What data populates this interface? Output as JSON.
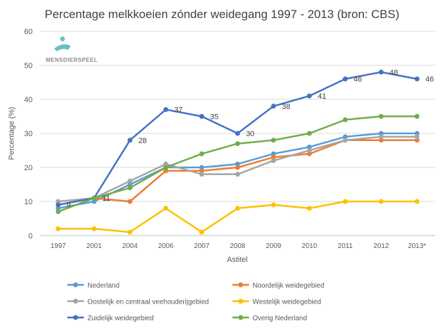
{
  "logo_text": "MENSDIERSPEEL",
  "chart_data": {
    "type": "line",
    "title": "Percentage melkkoeien zónder weidegang 1997 - 2013 (bron: CBS)",
    "xlabel": "Astitel",
    "ylabel": "Percentage (%)",
    "ylim": [
      0,
      60
    ],
    "yticks": [
      0,
      10,
      20,
      30,
      40,
      50,
      60
    ],
    "grid": true,
    "legend_position": "bottom",
    "categories": [
      "1997",
      "2001",
      "2004",
      "2006",
      "2007",
      "2008",
      "2009",
      "2010",
      "2011",
      "2012",
      "2013*"
    ],
    "series": [
      {
        "name": "Nederland",
        "color": "#5B9BD5",
        "values": [
          8,
          10,
          15,
          20,
          20,
          21,
          24,
          26,
          29,
          30,
          30
        ],
        "labels": false
      },
      {
        "name": "Noordelijk weidegebied",
        "color": "#ED7D31",
        "values": [
          9,
          11,
          10,
          19,
          19,
          20,
          23,
          24,
          28,
          28,
          28
        ],
        "labels": false
      },
      {
        "name": "Oostelijk en centraal veehouderijgebied",
        "color": "#A5A5A5",
        "values": [
          10,
          11,
          16,
          21,
          18,
          18,
          22,
          25,
          28,
          29,
          29
        ],
        "labels": false
      },
      {
        "name": "Westelijk weidegebied",
        "color": "#FFC000",
        "values": [
          2,
          2,
          1,
          8,
          1,
          8,
          9,
          8,
          10,
          10,
          10
        ],
        "labels": false
      },
      {
        "name": "Zuidelijk weidegebied",
        "color": "#4472C4",
        "values": [
          9,
          11,
          28,
          37,
          35,
          30,
          38,
          41,
          46,
          48,
          46
        ],
        "labels": true
      },
      {
        "name": "Overig Nederland",
        "color": "#70AD47",
        "values": [
          7,
          11,
          14,
          20,
          24,
          27,
          28,
          30,
          34,
          35,
          35
        ],
        "labels": false
      }
    ]
  }
}
